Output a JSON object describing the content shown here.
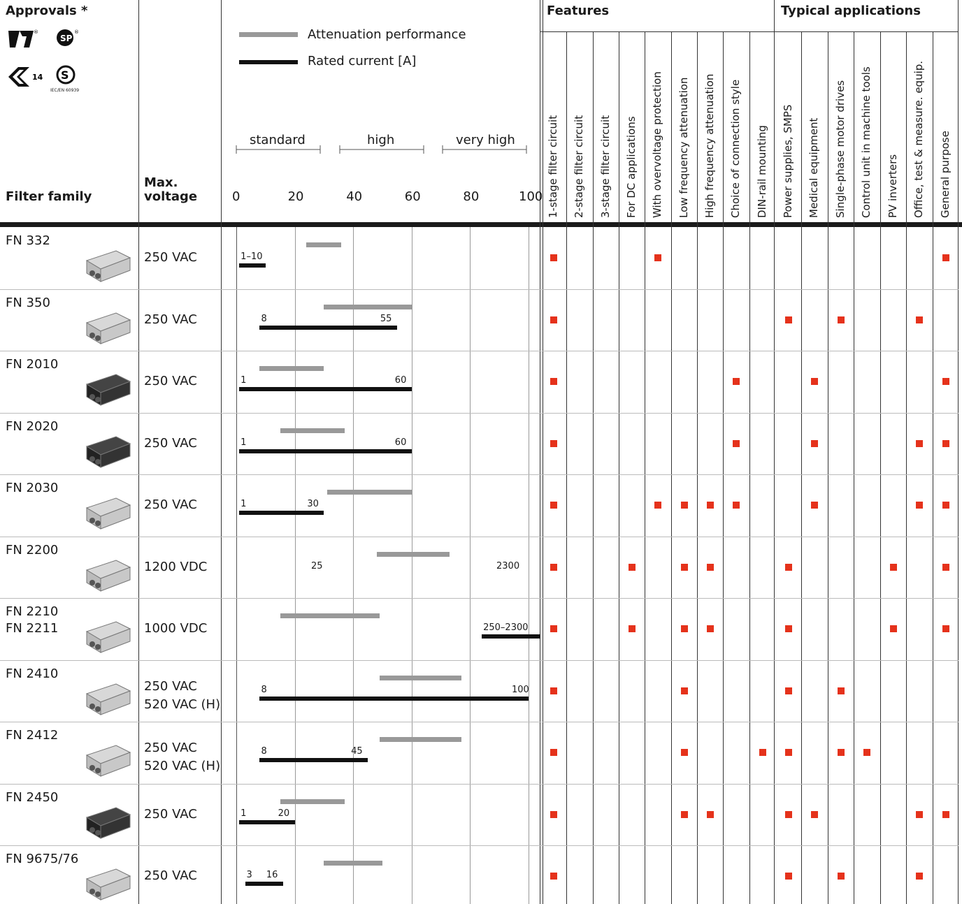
{
  "header": {
    "approvals_label": "Approvals *",
    "approvals_note": "IEC/EN 60939",
    "filter_family_label": "Filter family",
    "max_voltage_label_line1": "Max.",
    "max_voltage_label_line2": "voltage",
    "legend_attenuation": "Attenuation performance",
    "legend_rated_current": "Rated current [A]",
    "band_standard": "standard",
    "band_high": "high",
    "band_very_high": "very high",
    "axis_ticks": [
      "0",
      "20",
      "40",
      "60",
      "80",
      "100"
    ],
    "features_label": "Features",
    "applications_label": "Typical applications",
    "feature_columns": [
      "1-stage filter circuit",
      "2-stage filter circuit",
      "3-stage filter circuit",
      "For DC applications",
      "With overvoltage protection",
      "Low frequency attenuation",
      "High frequency attenuation",
      "Choice of connection style",
      "DIN-rail mounting"
    ],
    "application_columns": [
      "Power supplies, SMPS",
      "Medical equipment",
      "Single-phase motor drives",
      "Control unit in machine tools",
      "PV inverters",
      "Office, test & measure. equip.",
      "General purpose"
    ]
  },
  "colors": {
    "mark": "#e5321b",
    "attenuation_bar": "#999999",
    "current_bar": "#111111"
  },
  "rows": [
    {
      "family": "FN 332",
      "family2": "",
      "voltage": "250 VAC",
      "voltage2": "",
      "atten": [
        24,
        36
      ],
      "current": [
        1,
        10
      ],
      "current_label_left": "1–10",
      "current_label_right": "",
      "features": [
        1,
        0,
        0,
        0,
        1,
        0,
        0,
        0,
        0
      ],
      "apps": [
        0,
        0,
        0,
        0,
        0,
        0,
        1
      ]
    },
    {
      "family": "FN 350",
      "family2": "",
      "voltage": "250 VAC",
      "voltage2": "",
      "atten": [
        30,
        60
      ],
      "current": [
        8,
        55
      ],
      "current_label_left": "8",
      "current_label_right": "55",
      "features": [
        1,
        0,
        0,
        0,
        0,
        0,
        0,
        0,
        0
      ],
      "apps": [
        1,
        0,
        1,
        0,
        0,
        1,
        0
      ]
    },
    {
      "family": "FN 2010",
      "family2": "",
      "voltage": "250 VAC",
      "voltage2": "",
      "atten": [
        8,
        30
      ],
      "current": [
        1,
        60
      ],
      "current_label_left": "1",
      "current_label_right": "60",
      "features": [
        1,
        0,
        0,
        0,
        0,
        0,
        0,
        1,
        0
      ],
      "apps": [
        0,
        1,
        0,
        0,
        0,
        0,
        1
      ]
    },
    {
      "family": "FN 2020",
      "family2": "",
      "voltage": "250 VAC",
      "voltage2": "",
      "atten": [
        15,
        37
      ],
      "current": [
        1,
        60
      ],
      "current_label_left": "1",
      "current_label_right": "60",
      "features": [
        1,
        0,
        0,
        0,
        0,
        0,
        0,
        1,
        0
      ],
      "apps": [
        0,
        1,
        0,
        0,
        0,
        1,
        1
      ]
    },
    {
      "family": "FN 2030",
      "family2": "",
      "voltage": "250 VAC",
      "voltage2": "",
      "atten": [
        31,
        60
      ],
      "current": [
        1,
        30
      ],
      "current_label_left": "1",
      "current_label_right": "30",
      "features": [
        1,
        0,
        0,
        0,
        1,
        1,
        1,
        1,
        0
      ],
      "apps": [
        0,
        1,
        0,
        0,
        0,
        1,
        1
      ]
    },
    {
      "family": "FN 2200",
      "family2": "",
      "voltage": "1200 VDC",
      "voltage2": "",
      "atten": [
        48,
        73
      ],
      "current": null,
      "current_label_left": "25",
      "current_label_right": "2300",
      "features": [
        1,
        0,
        0,
        1,
        0,
        1,
        1,
        0,
        0
      ],
      "apps": [
        1,
        0,
        0,
        0,
        1,
        0,
        1
      ]
    },
    {
      "family": "FN 2210",
      "family2": "FN 2211",
      "voltage": "1000 VDC",
      "voltage2": "",
      "atten": [
        15,
        49
      ],
      "current": [
        84,
        104
      ],
      "current_label_left": "250–2300",
      "current_label_right": "",
      "features": [
        1,
        0,
        0,
        1,
        0,
        1,
        1,
        0,
        0
      ],
      "apps": [
        1,
        0,
        0,
        0,
        1,
        0,
        1
      ]
    },
    {
      "family": "FN 2410",
      "family2": "",
      "voltage": "250 VAC",
      "voltage2": "520 VAC (H)",
      "atten": [
        49,
        77
      ],
      "current": [
        8,
        100
      ],
      "current_label_left": "8",
      "current_label_right": "100",
      "features": [
        1,
        0,
        0,
        0,
        0,
        1,
        0,
        0,
        0
      ],
      "apps": [
        1,
        0,
        1,
        0,
        0,
        0,
        0
      ]
    },
    {
      "family": "FN 2412",
      "family2": "",
      "voltage": "250 VAC",
      "voltage2": "520 VAC (H)",
      "atten": [
        49,
        77
      ],
      "current": [
        8,
        45
      ],
      "current_label_left": "8",
      "current_label_right": "45",
      "features": [
        1,
        0,
        0,
        0,
        0,
        1,
        0,
        0,
        1
      ],
      "apps": [
        1,
        0,
        1,
        1,
        0,
        0,
        0
      ]
    },
    {
      "family": "FN 2450",
      "family2": "",
      "voltage": "250 VAC",
      "voltage2": "",
      "atten": [
        15,
        37
      ],
      "current": [
        1,
        20
      ],
      "current_label_left": "1",
      "current_label_right": "20",
      "features": [
        1,
        0,
        0,
        0,
        0,
        1,
        1,
        0,
        0
      ],
      "apps": [
        1,
        1,
        0,
        0,
        0,
        1,
        1
      ]
    },
    {
      "family": "FN 9675/76",
      "family2": "",
      "voltage": "250 VAC",
      "voltage2": "",
      "atten": [
        30,
        50
      ],
      "current": [
        3,
        16
      ],
      "current_label_left": "3",
      "current_label_right": "16",
      "features": [
        1,
        0,
        0,
        0,
        0,
        0,
        0,
        0,
        0
      ],
      "apps": [
        1,
        0,
        1,
        0,
        0,
        1,
        0
      ]
    }
  ]
}
